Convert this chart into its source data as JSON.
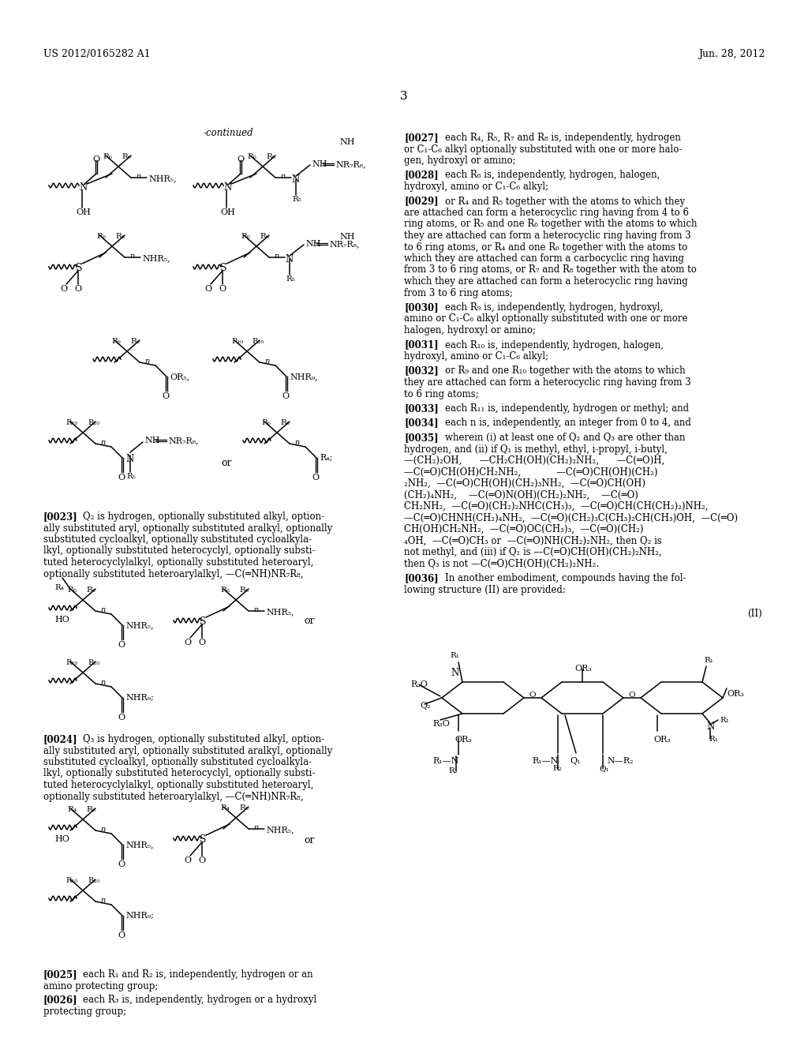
{
  "background_color": "#ffffff",
  "page_number": "3",
  "header_left": "US 2012/0165282 A1",
  "header_right": "Jun. 28, 2012"
}
